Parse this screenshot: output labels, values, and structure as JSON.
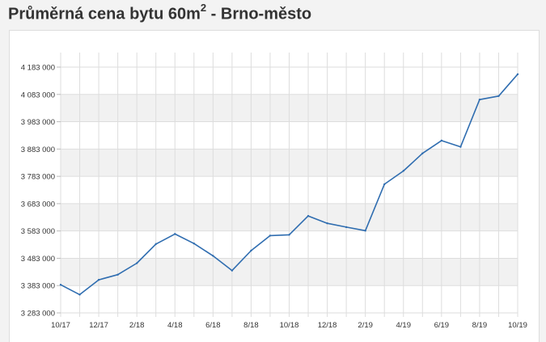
{
  "title": {
    "main": "Průměrná cena bytu 60m",
    "sup": "2",
    "suffix": " - Brno-město"
  },
  "colors": {
    "line": "#2f6db0",
    "band": "#f1f1f1",
    "grid": "#dddddd",
    "title": "#333333"
  },
  "chart_data": {
    "type": "line",
    "title": "Průměrná cena bytu 60m² - Brno-město",
    "xlabel": "",
    "ylabel": "",
    "ylim": [
      3283000,
      4183000
    ],
    "grid": true,
    "legend": "none",
    "y_ticks": [
      3283000,
      3383000,
      3483000,
      3583000,
      3683000,
      3783000,
      3883000,
      3983000,
      4083000,
      4183000
    ],
    "y_tick_labels": [
      "3 283 000",
      "3 383 000",
      "3 483 000",
      "3 583 000",
      "3 683 000",
      "3 783 000",
      "3 883 000",
      "3 983 000",
      "4 083 000",
      "4 183 000"
    ],
    "x_tick_labels": [
      "10/17",
      "12/17",
      "2/18",
      "4/18",
      "6/18",
      "8/18",
      "10/18",
      "12/18",
      "2/19",
      "4/19",
      "6/19",
      "8/19",
      "10/19"
    ],
    "x": [
      "10/17",
      "11/17",
      "12/17",
      "1/18",
      "2/18",
      "3/18",
      "4/18",
      "5/18",
      "6/18",
      "7/18",
      "8/18",
      "9/18",
      "10/18",
      "11/18",
      "12/18",
      "1/19",
      "2/19",
      "3/19",
      "4/19",
      "5/19",
      "6/19",
      "7/19",
      "8/19",
      "9/19",
      "10/19"
    ],
    "series": [
      {
        "values": [
          3386000,
          3350000,
          3404000,
          3423000,
          3465000,
          3535000,
          3572000,
          3537000,
          3492000,
          3438000,
          3511000,
          3566000,
          3569000,
          3638000,
          3611000,
          3597000,
          3584000,
          3754000,
          3803000,
          3867000,
          3914000,
          3891000,
          4064000,
          4077000,
          4157000
        ]
      }
    ]
  }
}
